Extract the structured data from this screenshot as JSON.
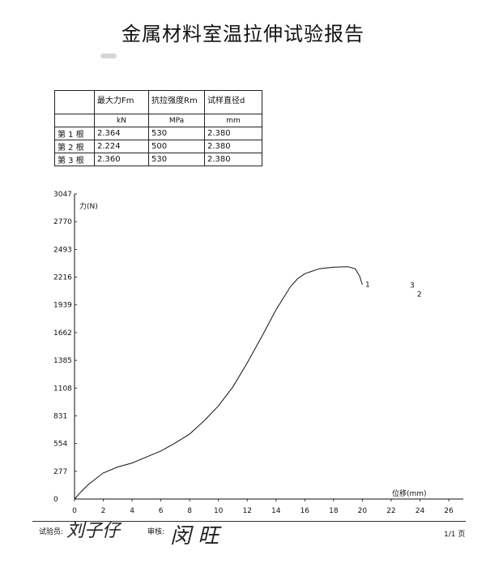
{
  "report": {
    "title": "金属材料室温拉伸试验报告"
  },
  "table": {
    "headers": [
      "",
      "最大力Fm",
      "抗拉强度Rm",
      "试样直径d"
    ],
    "units": [
      "",
      "kN",
      "MPa",
      "mm"
    ],
    "rows": [
      [
        "第 1 根",
        "2.364",
        "530",
        "2.380"
      ],
      [
        "第 2 根",
        "2.224",
        "500",
        "2.380"
      ],
      [
        "第 3 根",
        "2.360",
        "530",
        "2.380"
      ]
    ]
  },
  "chart_data": {
    "type": "line",
    "xlabel": "位移(mm)",
    "ylabel": "力(N)",
    "xlim": [
      0,
      26
    ],
    "ylim": [
      0,
      3047
    ],
    "xticks": [
      0,
      2,
      4,
      6,
      8,
      10,
      12,
      14,
      16,
      18,
      20,
      22,
      24,
      26
    ],
    "yticks": [
      0,
      277,
      554,
      831,
      1108,
      1385,
      1662,
      1939,
      2216,
      2493,
      2770,
      3047
    ],
    "series": [
      {
        "x": [
          0,
          0.5,
          1,
          2,
          3,
          4,
          5,
          6,
          7,
          8,
          9,
          10,
          11,
          12,
          13,
          14,
          15,
          15.5,
          16,
          17,
          18,
          19,
          19.5,
          19.8,
          20.0
        ],
        "y": [
          0,
          80,
          150,
          260,
          320,
          360,
          420,
          480,
          560,
          650,
          780,
          930,
          1120,
          1360,
          1620,
          1890,
          2120,
          2200,
          2250,
          2300,
          2315,
          2320,
          2300,
          2230,
          2140
        ]
      }
    ],
    "annotations": [
      {
        "text": "1",
        "x": 20.2,
        "y": 2120
      },
      {
        "text": "3",
        "x": 23.3,
        "y": 2110
      },
      {
        "text": "2",
        "x": 23.8,
        "y": 2020
      }
    ],
    "grid": false
  },
  "footer": {
    "tester_label": "试验员:",
    "reviewer_label": "审核:",
    "page": "1/1 页"
  }
}
